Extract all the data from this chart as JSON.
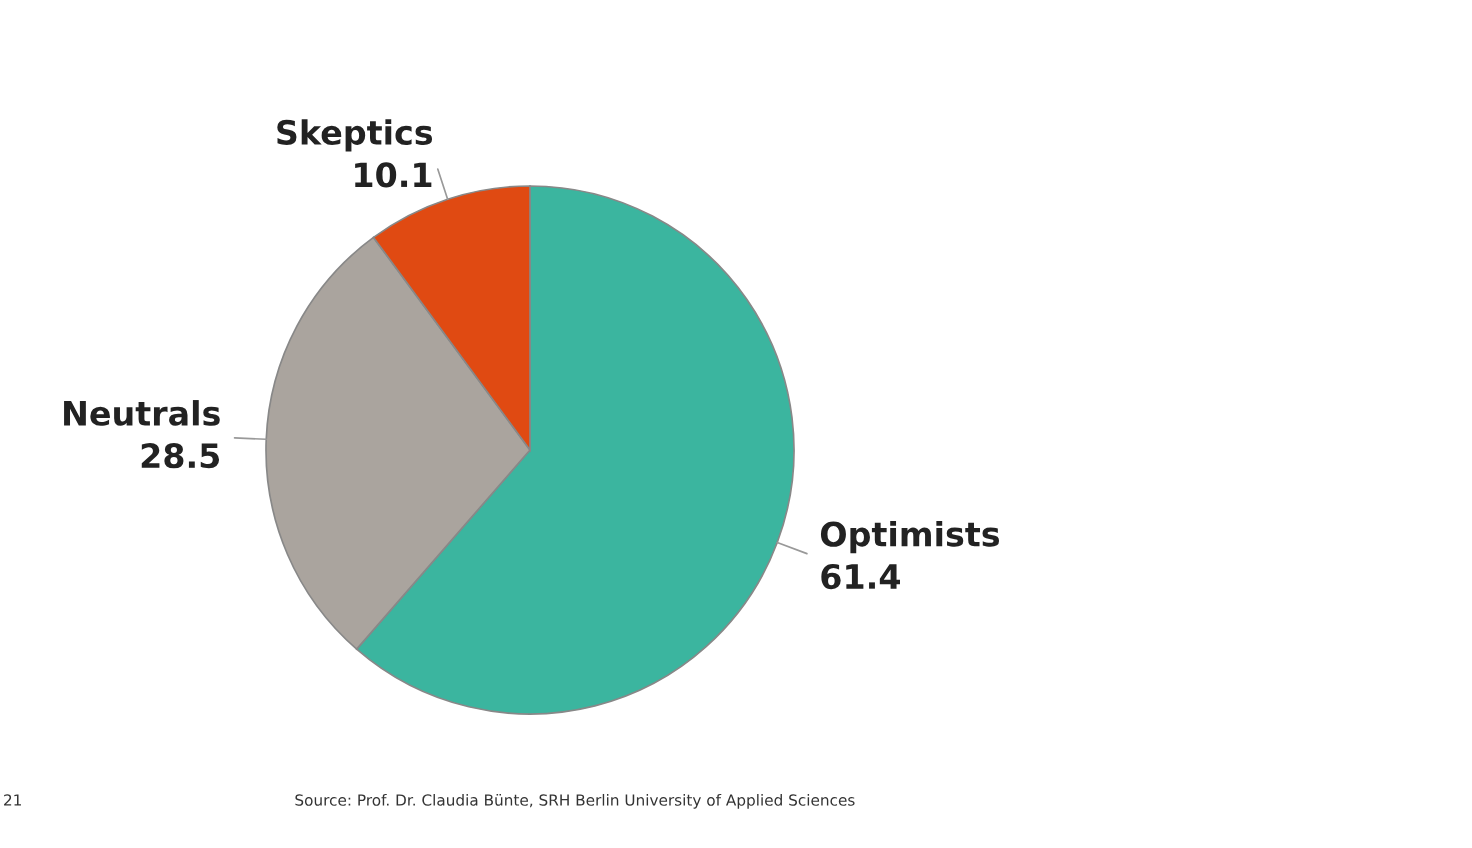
{
  "chart_data": {
    "type": "pie",
    "categories": [
      "Optimists",
      "Neutrals",
      "Skeptics"
    ],
    "values": [
      61.4,
      28.5,
      10.1
    ],
    "colors": [
      "#3bb59f",
      "#aaa49e",
      "#e04a12"
    ],
    "data_labels": true,
    "annotations": [
      "21",
      "Source: Prof. Dr. Claudia Bünte, SRH Berlin University of Applied Sciences"
    ]
  }
}
